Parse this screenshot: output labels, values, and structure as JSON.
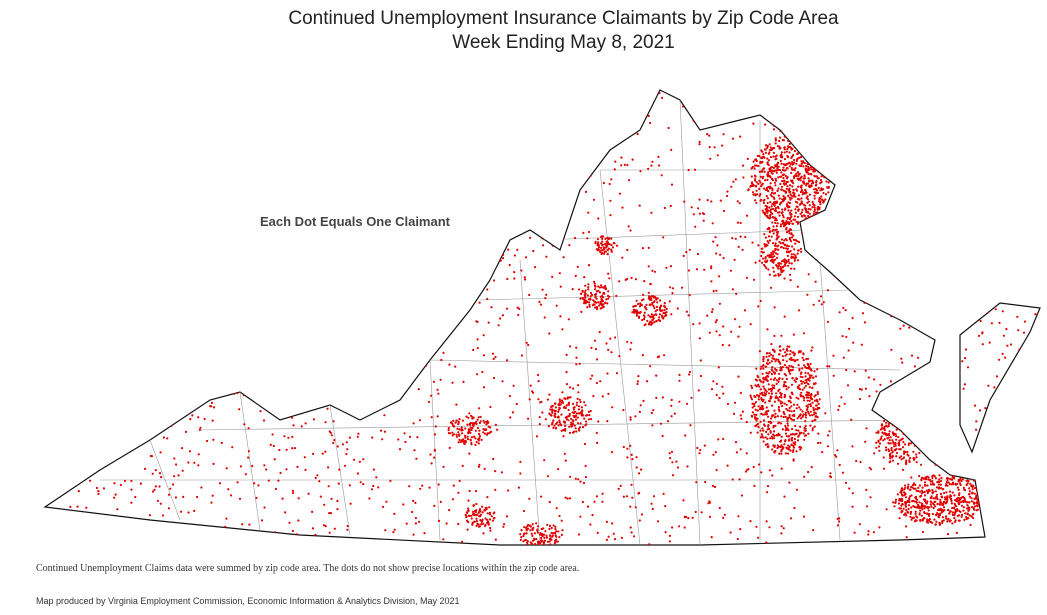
{
  "header": {
    "title": "Continued Unemployment Insurance Claimants by Zip Code Area",
    "subtitle": "Week Ending May 8, 2021"
  },
  "map": {
    "legend_note": "Each Dot Equals One Claimant"
  },
  "footer": {
    "note": "Continued Unemployment Claims data were summed by zip code area. The dots do not show precise locations within the zip code area.",
    "credit": "Map produced by Virginia Employment Commission, Economic Information & Analytics Division,  May 2021"
  }
}
